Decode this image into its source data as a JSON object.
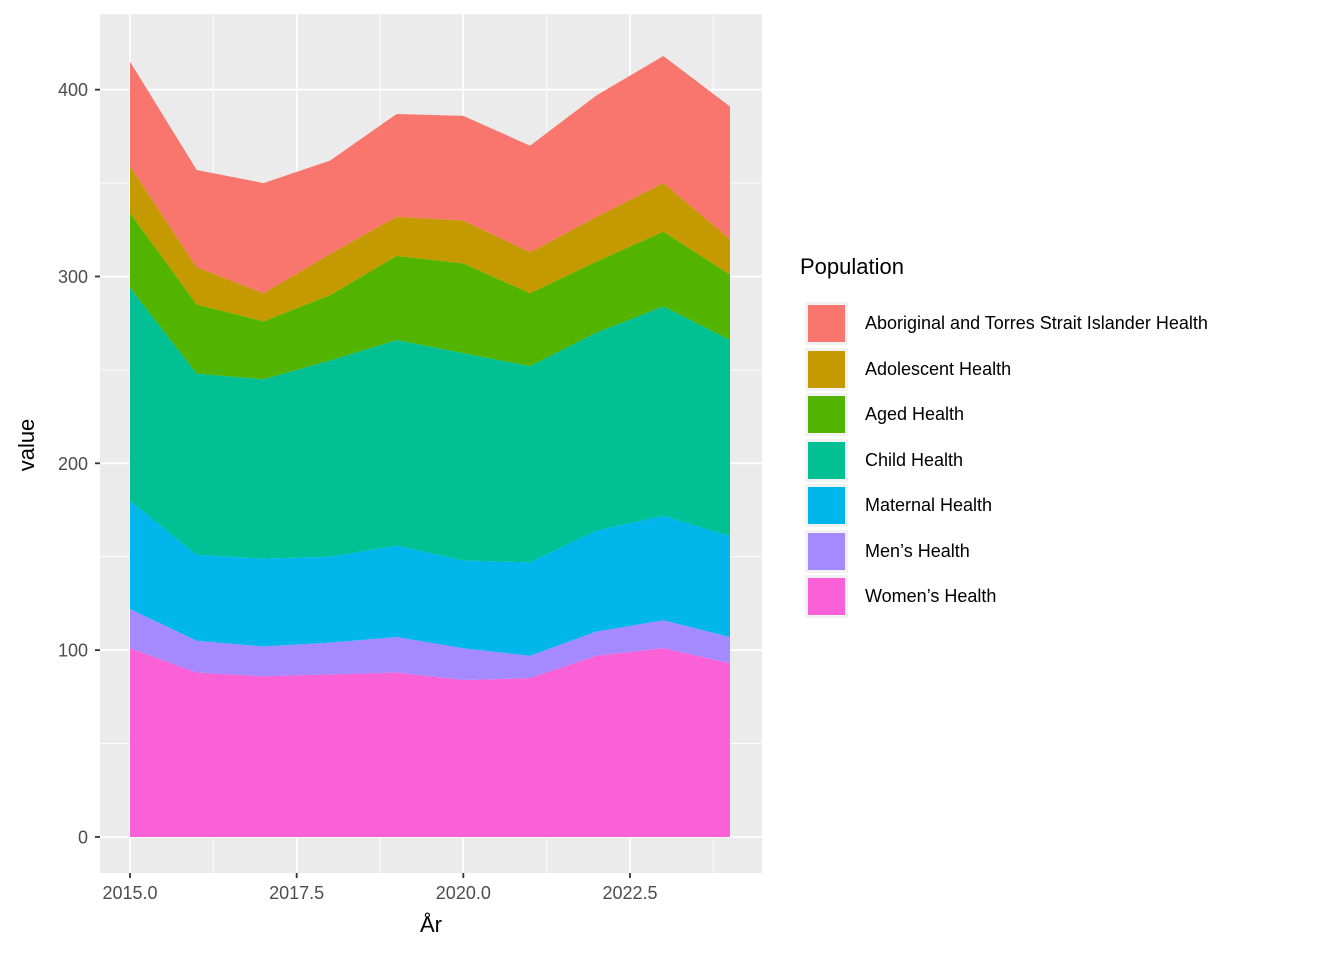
{
  "figure": {
    "background": "#FFFFFF",
    "panel_background": "#EBEBEB",
    "grid_color": "#FFFFFF",
    "axis_text_color": "#4D4D4D",
    "tick_mark_color": "#333333"
  },
  "axes": {
    "x_title": "År",
    "y_title": "value"
  },
  "legend": {
    "title": "Population"
  },
  "chart_data": {
    "type": "area",
    "stacked": true,
    "title": "",
    "xlabel": "År",
    "ylabel": "value",
    "legend_title": "Population",
    "legend_position": "right",
    "grid": true,
    "x": [
      2015,
      2016,
      2017,
      2018,
      2019,
      2020,
      2021,
      2022,
      2023,
      2024
    ],
    "series": [
      {
        "name": "Aboriginal and Torres Strait Islander Health",
        "color": "#F8766D",
        "values": [
          56,
          52,
          59,
          50,
          55,
          56,
          57,
          65,
          68,
          71
        ]
      },
      {
        "name": "Adolescent Health",
        "color": "#C49A00",
        "values": [
          25,
          20,
          15,
          22,
          21,
          23,
          22,
          24,
          26,
          19
        ]
      },
      {
        "name": "Aged Health",
        "color": "#53B400",
        "values": [
          40,
          37,
          31,
          35,
          45,
          48,
          39,
          38,
          40,
          35
        ]
      },
      {
        "name": "Child Health",
        "color": "#00C094",
        "values": [
          114,
          97,
          96,
          105,
          110,
          111,
          105,
          106,
          112,
          105
        ]
      },
      {
        "name": "Maternal Health",
        "color": "#00B6EB",
        "values": [
          58,
          46,
          47,
          46,
          49,
          47,
          50,
          54,
          56,
          54
        ]
      },
      {
        "name": "Men’s Health",
        "color": "#A58AFF",
        "values": [
          21,
          17,
          16,
          17,
          19,
          17,
          12,
          13,
          15,
          14
        ]
      },
      {
        "name": "Women’s Health",
        "color": "#FB61D7",
        "values": [
          101,
          88,
          86,
          87,
          88,
          84,
          85,
          97,
          101,
          93
        ]
      }
    ],
    "stack_note": "series listed in legend order; stacking bottom-to-top is the reverse (Women's Health at bottom, Aboriginal and Torres Strait Islander Health on top)",
    "stacked_totals": [
      415,
      357,
      350,
      362,
      387,
      386,
      370,
      397,
      418,
      391
    ],
    "x_ticks": [
      {
        "value": 2015.0,
        "label": "2015.0"
      },
      {
        "value": 2017.5,
        "label": "2017.5"
      },
      {
        "value": 2020.0,
        "label": "2020.0"
      },
      {
        "value": 2022.5,
        "label": "2022.5"
      }
    ],
    "y_ticks": [
      {
        "value": 0,
        "label": "0"
      },
      {
        "value": 100,
        "label": "100"
      },
      {
        "value": 200,
        "label": "200"
      },
      {
        "value": 300,
        "label": "300"
      },
      {
        "value": 400,
        "label": "400"
      }
    ],
    "x_minor": [
      2016.25,
      2018.75,
      2021.25,
      2023.75
    ],
    "y_minor": [
      50,
      150,
      250,
      350
    ],
    "xlim": [
      2014.55,
      2024.48
    ],
    "ylim": [
      -19.3,
      440.5
    ]
  }
}
